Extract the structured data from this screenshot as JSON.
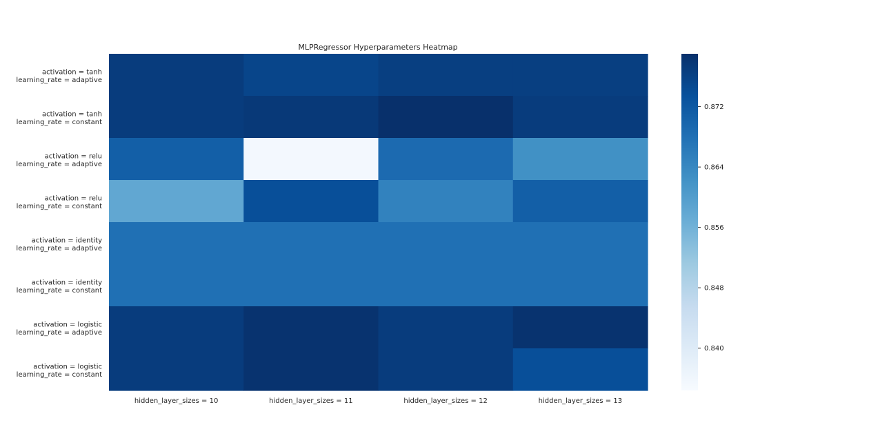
{
  "chart_data": {
    "type": "heatmap",
    "title": "MLPRegressor Hyperparameters Heatmap",
    "xlabel": "",
    "ylabel": "",
    "colormap": "Blues",
    "colors": [
      "#f7fbff",
      "#deebf7",
      "#c6dbef",
      "#9ecae1",
      "#6baed6",
      "#4292c6",
      "#2171b5",
      "#08519c",
      "#08306b"
    ],
    "x_labels": [
      "hidden_layer_sizes = 10",
      "hidden_layer_sizes = 11",
      "hidden_layer_sizes = 12",
      "hidden_layer_sizes = 13"
    ],
    "y_labels": [
      [
        "activation = tanh",
        "learning_rate = adaptive"
      ],
      [
        "activation = tanh",
        "learning_rate = constant"
      ],
      [
        "activation = relu",
        "learning_rate = adaptive"
      ],
      [
        "activation = relu",
        "learning_rate = constant"
      ],
      [
        "activation = identity",
        "learning_rate = adaptive"
      ],
      [
        "activation = identity",
        "learning_rate = constant"
      ],
      [
        "activation = logistic",
        "learning_rate = adaptive"
      ],
      [
        "activation = logistic",
        "learning_rate = constant"
      ]
    ],
    "values": [
      [
        0.877,
        0.8755,
        0.8765,
        0.8765
      ],
      [
        0.877,
        0.8775,
        0.8792,
        0.877
      ],
      [
        0.871,
        0.8354,
        0.869,
        0.8625
      ],
      [
        0.858,
        0.8738,
        0.865,
        0.871
      ],
      [
        0.868,
        0.868,
        0.868,
        0.868
      ],
      [
        0.868,
        0.868,
        0.868,
        0.868
      ],
      [
        0.877,
        0.8785,
        0.877,
        0.8785
      ],
      [
        0.877,
        0.8785,
        0.877,
        0.8738
      ]
    ],
    "colorbar": {
      "vmin": 0.8344,
      "vmax": 0.879,
      "ticks": [
        0.84,
        0.848,
        0.856,
        0.864,
        0.872
      ],
      "tick_labels": [
        "0.840",
        "0.848",
        "0.856",
        "0.864",
        "0.872"
      ]
    }
  }
}
